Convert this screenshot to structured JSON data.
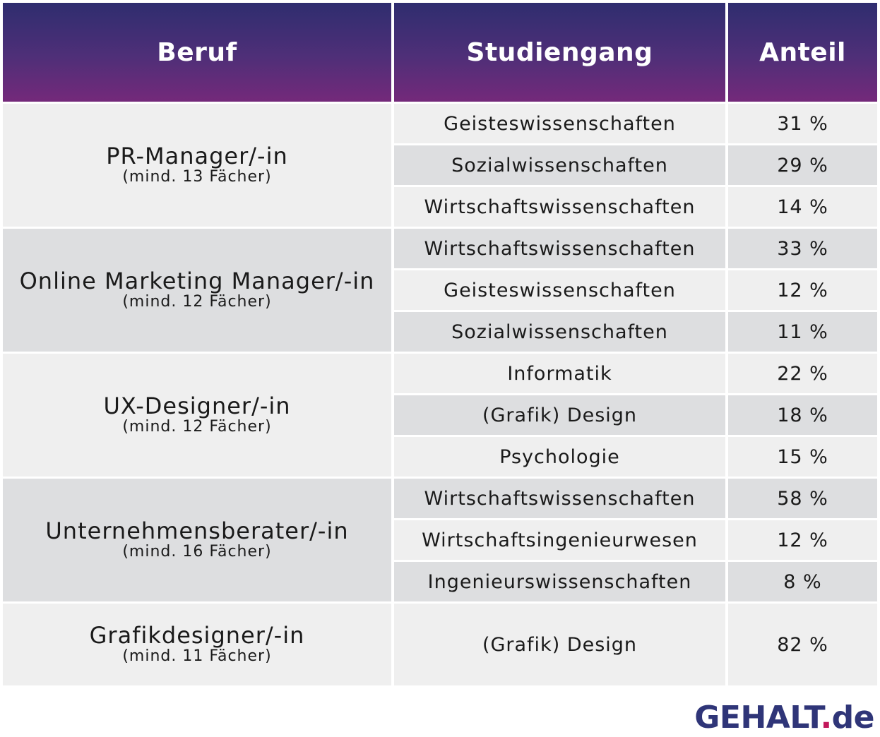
{
  "table": {
    "headers": [
      "Beruf",
      "Studiengang",
      "Anteil"
    ],
    "groups": [
      {
        "beruf": "PR-Manager/-in",
        "note": "(mind. 13 Fächer)",
        "rows": [
          {
            "studiengang": "Geisteswissenschaften",
            "anteil": "31 %"
          },
          {
            "studiengang": "Sozialwissenschaften",
            "anteil": "29 %"
          },
          {
            "studiengang": "Wirtschaftswissenschaften",
            "anteil": "14 %"
          }
        ]
      },
      {
        "beruf": "Online Marketing Manager/-in",
        "note": "(mind. 12 Fächer)",
        "rows": [
          {
            "studiengang": "Wirtschaftswissenschaften",
            "anteil": "33 %"
          },
          {
            "studiengang": "Geisteswissenschaften",
            "anteil": "12 %"
          },
          {
            "studiengang": "Sozialwissenschaften",
            "anteil": "11 %"
          }
        ]
      },
      {
        "beruf": "UX-Designer/-in",
        "note": "(mind. 12 Fächer)",
        "rows": [
          {
            "studiengang": "Informatik",
            "anteil": "22 %"
          },
          {
            "studiengang": "(Grafik) Design",
            "anteil": "18 %"
          },
          {
            "studiengang": "Psychologie",
            "anteil": "15 %"
          }
        ]
      },
      {
        "beruf": "Unternehmensberater/-in",
        "note": "(mind. 16 Fächer)",
        "rows": [
          {
            "studiengang": "Wirtschaftswissenschaften",
            "anteil": "58 %"
          },
          {
            "studiengang": "Wirtschaftsingenieurwesen",
            "anteil": "12 %"
          },
          {
            "studiengang": "Ingenieurswissenschaften",
            "anteil": "8 %"
          }
        ]
      },
      {
        "beruf": "Grafikdesigner/-in",
        "note": "(mind. 11 Fächer)",
        "rows": [
          {
            "studiengang": "(Grafik) Design",
            "anteil": "82 %"
          }
        ]
      }
    ]
  },
  "logo": {
    "name": "GEHALT",
    "dot": ".",
    "tld": "de"
  },
  "colors": {
    "header_top": "#2f2d6f",
    "header_bottom": "#74297a",
    "row_light": "#efefef",
    "row_dark": "#dddee0",
    "logo_text": "#2f3578",
    "logo_dot": "#c2185b"
  }
}
